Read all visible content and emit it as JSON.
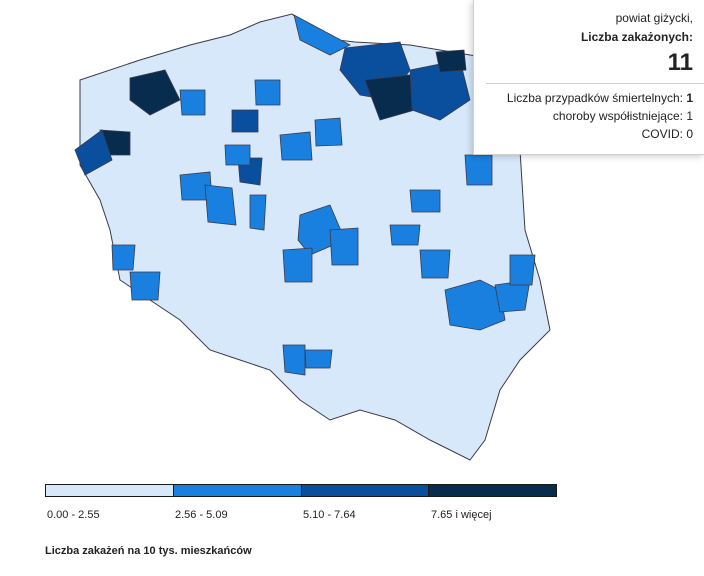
{
  "map": {
    "colors": [
      "#d7e8fb",
      "#1a80df",
      "#0a4f9e",
      "#072c4d"
    ],
    "counties": [
      {
        "p": [
          [
            294,
            15
          ],
          [
            350,
            45
          ],
          [
            330,
            55
          ],
          [
            300,
            40
          ]
        ],
        "c": 1
      },
      {
        "p": [
          [
            345,
            48
          ],
          [
            400,
            42
          ],
          [
            410,
            70
          ],
          [
            390,
            100
          ],
          [
            360,
            95
          ],
          [
            340,
            70
          ]
        ],
        "c": 2
      },
      {
        "p": [
          [
            365,
            80
          ],
          [
            410,
            75
          ],
          [
            415,
            110
          ],
          [
            380,
            120
          ]
        ],
        "c": 3
      },
      {
        "p": [
          [
            410,
            70
          ],
          [
            460,
            60
          ],
          [
            470,
            100
          ],
          [
            440,
            120
          ],
          [
            412,
            110
          ]
        ],
        "c": 2
      },
      {
        "p": [
          [
            436,
            52
          ],
          [
            464,
            50
          ],
          [
            466,
            70
          ],
          [
            440,
            72
          ]
        ],
        "c": 3
      },
      {
        "p": [
          [
            130,
            78
          ],
          [
            165,
            70
          ],
          [
            180,
            100
          ],
          [
            150,
            115
          ],
          [
            130,
            100
          ]
        ],
        "c": 3
      },
      {
        "p": [
          [
            100,
            130
          ],
          [
            130,
            132
          ],
          [
            130,
            155
          ],
          [
            108,
            155
          ]
        ],
        "c": 3
      },
      {
        "p": [
          [
            75,
            150
          ],
          [
            102,
            130
          ],
          [
            112,
            160
          ],
          [
            85,
            175
          ]
        ],
        "c": 2
      },
      {
        "p": [
          [
            232,
            110
          ],
          [
            258,
            110
          ],
          [
            258,
            132
          ],
          [
            232,
            132
          ]
        ],
        "c": 2
      },
      {
        "p": [
          [
            238,
            158
          ],
          [
            262,
            158
          ],
          [
            260,
            185
          ],
          [
            240,
            182
          ]
        ],
        "c": 2
      },
      {
        "p": [
          [
            250,
            195
          ],
          [
            266,
            195
          ],
          [
            264,
            230
          ],
          [
            250,
            228
          ]
        ],
        "c": 1
      },
      {
        "p": [
          [
            180,
            175
          ],
          [
            210,
            172
          ],
          [
            212,
            200
          ],
          [
            182,
            200
          ]
        ],
        "c": 1
      },
      {
        "p": [
          [
            205,
            185
          ],
          [
            232,
            188
          ],
          [
            236,
            225
          ],
          [
            208,
            222
          ]
        ],
        "c": 1
      },
      {
        "p": [
          [
            300,
            215
          ],
          [
            330,
            205
          ],
          [
            345,
            240
          ],
          [
            310,
            255
          ],
          [
            298,
            240
          ]
        ],
        "c": 1
      },
      {
        "p": [
          [
            330,
            230
          ],
          [
            358,
            228
          ],
          [
            358,
            265
          ],
          [
            332,
            265
          ]
        ],
        "c": 1
      },
      {
        "p": [
          [
            410,
            190
          ],
          [
            440,
            190
          ],
          [
            440,
            212
          ],
          [
            412,
            212
          ]
        ],
        "c": 1
      },
      {
        "p": [
          [
            390,
            225
          ],
          [
            420,
            225
          ],
          [
            418,
            245
          ],
          [
            392,
            245
          ]
        ],
        "c": 1
      },
      {
        "p": [
          [
            420,
            250
          ],
          [
            450,
            250
          ],
          [
            448,
            278
          ],
          [
            422,
            278
          ]
        ],
        "c": 1
      },
      {
        "p": [
          [
            445,
            290
          ],
          [
            480,
            280
          ],
          [
            500,
            290
          ],
          [
            505,
            320
          ],
          [
            480,
            330
          ],
          [
            450,
            325
          ]
        ],
        "c": 1
      },
      {
        "p": [
          [
            495,
            285
          ],
          [
            530,
            280
          ],
          [
            525,
            310
          ],
          [
            500,
            312
          ]
        ],
        "c": 1
      },
      {
        "p": [
          [
            510,
            255
          ],
          [
            535,
            255
          ],
          [
            532,
            285
          ],
          [
            510,
            285
          ]
        ],
        "c": 1
      },
      {
        "p": [
          [
            283,
            250
          ],
          [
            312,
            248
          ],
          [
            312,
            282
          ],
          [
            285,
            282
          ]
        ],
        "c": 1
      },
      {
        "p": [
          [
            112,
            245
          ],
          [
            135,
            245
          ],
          [
            133,
            270
          ],
          [
            113,
            270
          ]
        ],
        "c": 1
      },
      {
        "p": [
          [
            130,
            272
          ],
          [
            160,
            272
          ],
          [
            158,
            300
          ],
          [
            132,
            300
          ]
        ],
        "c": 1
      },
      {
        "p": [
          [
            283,
            345
          ],
          [
            305,
            345
          ],
          [
            305,
            375
          ],
          [
            285,
            372
          ]
        ],
        "c": 1
      },
      {
        "p": [
          [
            305,
            350
          ],
          [
            332,
            350
          ],
          [
            330,
            368
          ],
          [
            306,
            368
          ]
        ],
        "c": 1
      },
      {
        "p": [
          [
            465,
            155
          ],
          [
            492,
            155
          ],
          [
            492,
            185
          ],
          [
            467,
            185
          ]
        ],
        "c": 1
      },
      {
        "p": [
          [
            180,
            90
          ],
          [
            205,
            90
          ],
          [
            205,
            115
          ],
          [
            182,
            115
          ]
        ],
        "c": 1
      },
      {
        "p": [
          [
            255,
            80
          ],
          [
            280,
            80
          ],
          [
            280,
            105
          ],
          [
            256,
            105
          ]
        ],
        "c": 1
      },
      {
        "p": [
          [
            280,
            135
          ],
          [
            310,
            132
          ],
          [
            312,
            160
          ],
          [
            282,
            160
          ]
        ],
        "c": 1
      },
      {
        "p": [
          [
            315,
            120
          ],
          [
            340,
            118
          ],
          [
            342,
            145
          ],
          [
            316,
            146
          ]
        ],
        "c": 1
      },
      {
        "p": [
          [
            225,
            145
          ],
          [
            250,
            145
          ],
          [
            250,
            165
          ],
          [
            226,
            165
          ]
        ],
        "c": 1
      }
    ]
  },
  "tooltip": {
    "county": "powiat giżycki,",
    "label": "Liczba zakażonych:",
    "value": "11",
    "deaths_label": "Liczba przypadków śmiertelnych:",
    "deaths_value": "1",
    "comorbid_label": "choroby współistniejące:",
    "comorbid_value": "1",
    "covid_label": "COVID:",
    "covid_value": "0"
  },
  "legend": {
    "ranges": [
      "0.00 - 2.55",
      "2.56 - 5.09",
      "5.10 - 7.64",
      "7.65 i więcej"
    ],
    "caption": "Liczba zakażeń na 10 tys. mieszkańców"
  }
}
